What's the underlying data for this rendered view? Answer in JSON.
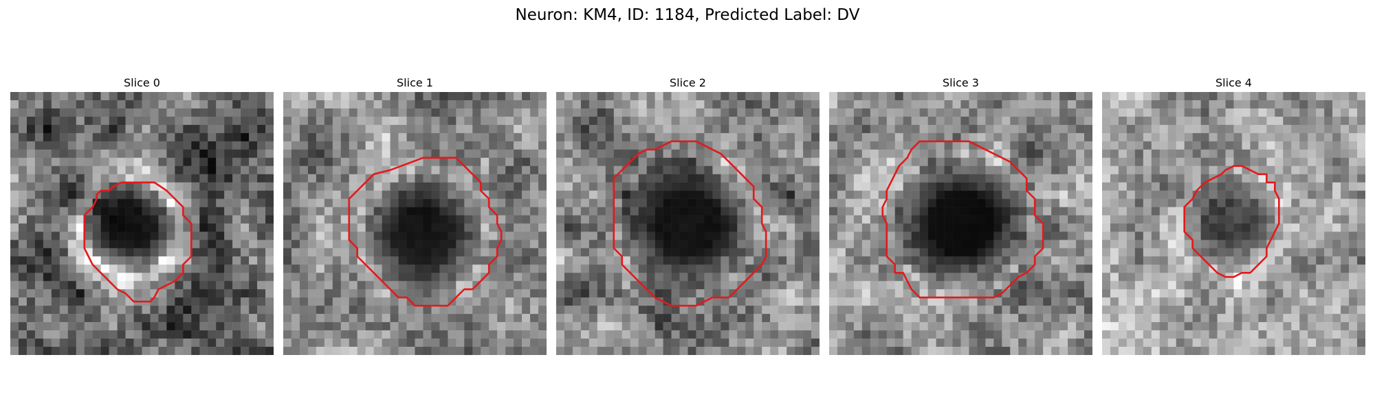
{
  "figure": {
    "title": "Neuron: KM4, ID: 1184, Predicted Label: DV"
  },
  "slices": [
    {
      "title": "Slice 0",
      "brightness": "medium",
      "contrast": "high"
    },
    {
      "title": "Slice 1",
      "brightness": "medium",
      "contrast": "medium"
    },
    {
      "title": "Slice 2",
      "brightness": "medium",
      "contrast": "medium"
    },
    {
      "title": "Slice 3",
      "brightness": "medium",
      "contrast": "medium"
    },
    {
      "title": "Slice 4",
      "brightness": "light",
      "contrast": "low"
    }
  ],
  "contour_color": "#e31a1c",
  "colormap": "gray",
  "grid_size": 32
}
